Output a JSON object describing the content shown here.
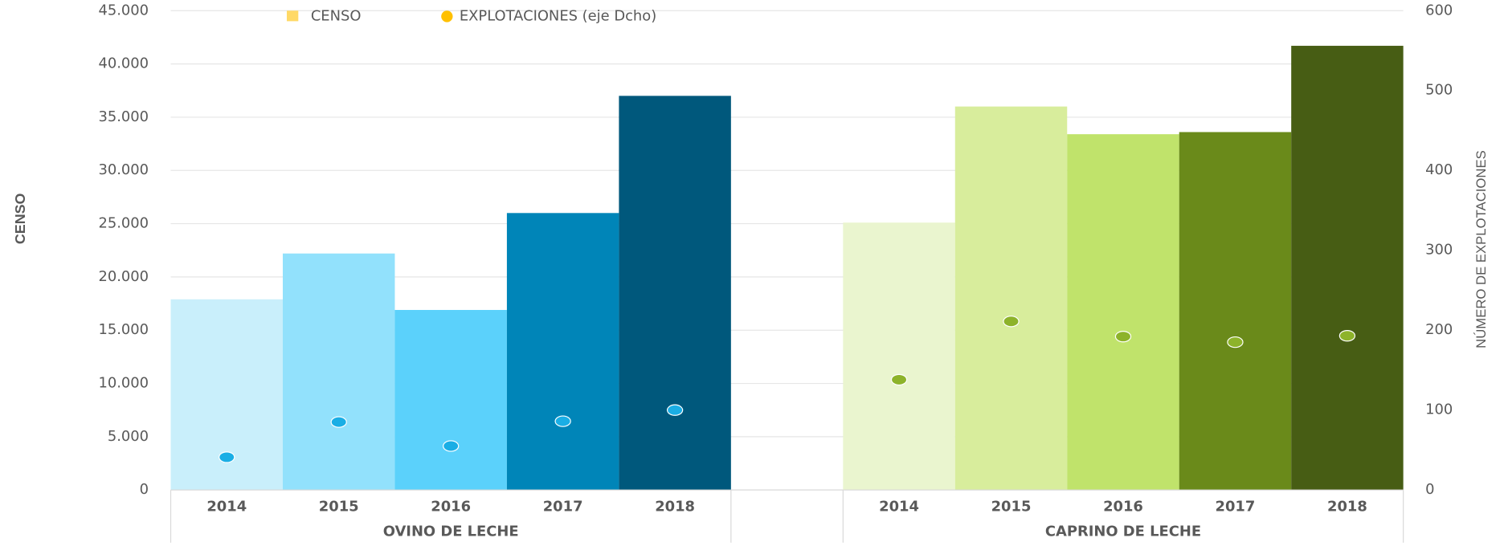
{
  "chart_data": {
    "type": "bar",
    "legend": [
      {
        "name": "CENSO",
        "color": "#ffd966"
      },
      {
        "name": "EXPLOTACIONES (eje Dcho)",
        "color": "#ffc000"
      }
    ],
    "ylabel": "CENSO",
    "y2label": "NÚMERO DE EXPLOTACIONES",
    "ylim": [
      0,
      45000
    ],
    "yticks": [
      0,
      {
        "value": 5000,
        "label": "5.000"
      },
      {
        "value": 10000,
        "label": "10.000"
      },
      {
        "value": 15000,
        "label": "15.000"
      },
      {
        "value": 20000,
        "label": "20.000"
      },
      {
        "value": 25000,
        "label": "25.000"
      },
      {
        "value": 30000,
        "label": "30.000"
      },
      {
        "value": 35000,
        "label": "35.000"
      },
      {
        "value": 40000,
        "label": "40.000"
      },
      {
        "value": 45000,
        "label": "45.000"
      }
    ],
    "y2lim": [
      0,
      600
    ],
    "y2ticks": [
      0,
      100,
      200,
      300,
      400,
      500,
      600
    ],
    "grid": true,
    "groups": [
      {
        "name": "OVINO DE LECHE",
        "categories": [
          "2014",
          "2015",
          "2016",
          "2017",
          "2018"
        ],
        "values": [
          17900,
          22200,
          16900,
          26000,
          37000
        ],
        "colors": [
          "#c9effb",
          "#92e1fc",
          "#5bd1fb",
          "#0085b8",
          "#00587c"
        ],
        "explotaciones": [
          41,
          85,
          55,
          86,
          100
        ],
        "point_color": "#1aaee5"
      },
      {
        "name": "CAPRINO DE LECHE",
        "categories": [
          "2014",
          "2015",
          "2016",
          "2017",
          "2018"
        ],
        "values": [
          25100,
          36000,
          33400,
          33600,
          41700
        ],
        "colors": [
          "#eaf5cf",
          "#d8ed9c",
          "#c0e36b",
          "#6a8a1a",
          "#475d14"
        ],
        "explotaciones": [
          138,
          211,
          192,
          185,
          193
        ],
        "point_color": "#8db32a"
      }
    ]
  }
}
